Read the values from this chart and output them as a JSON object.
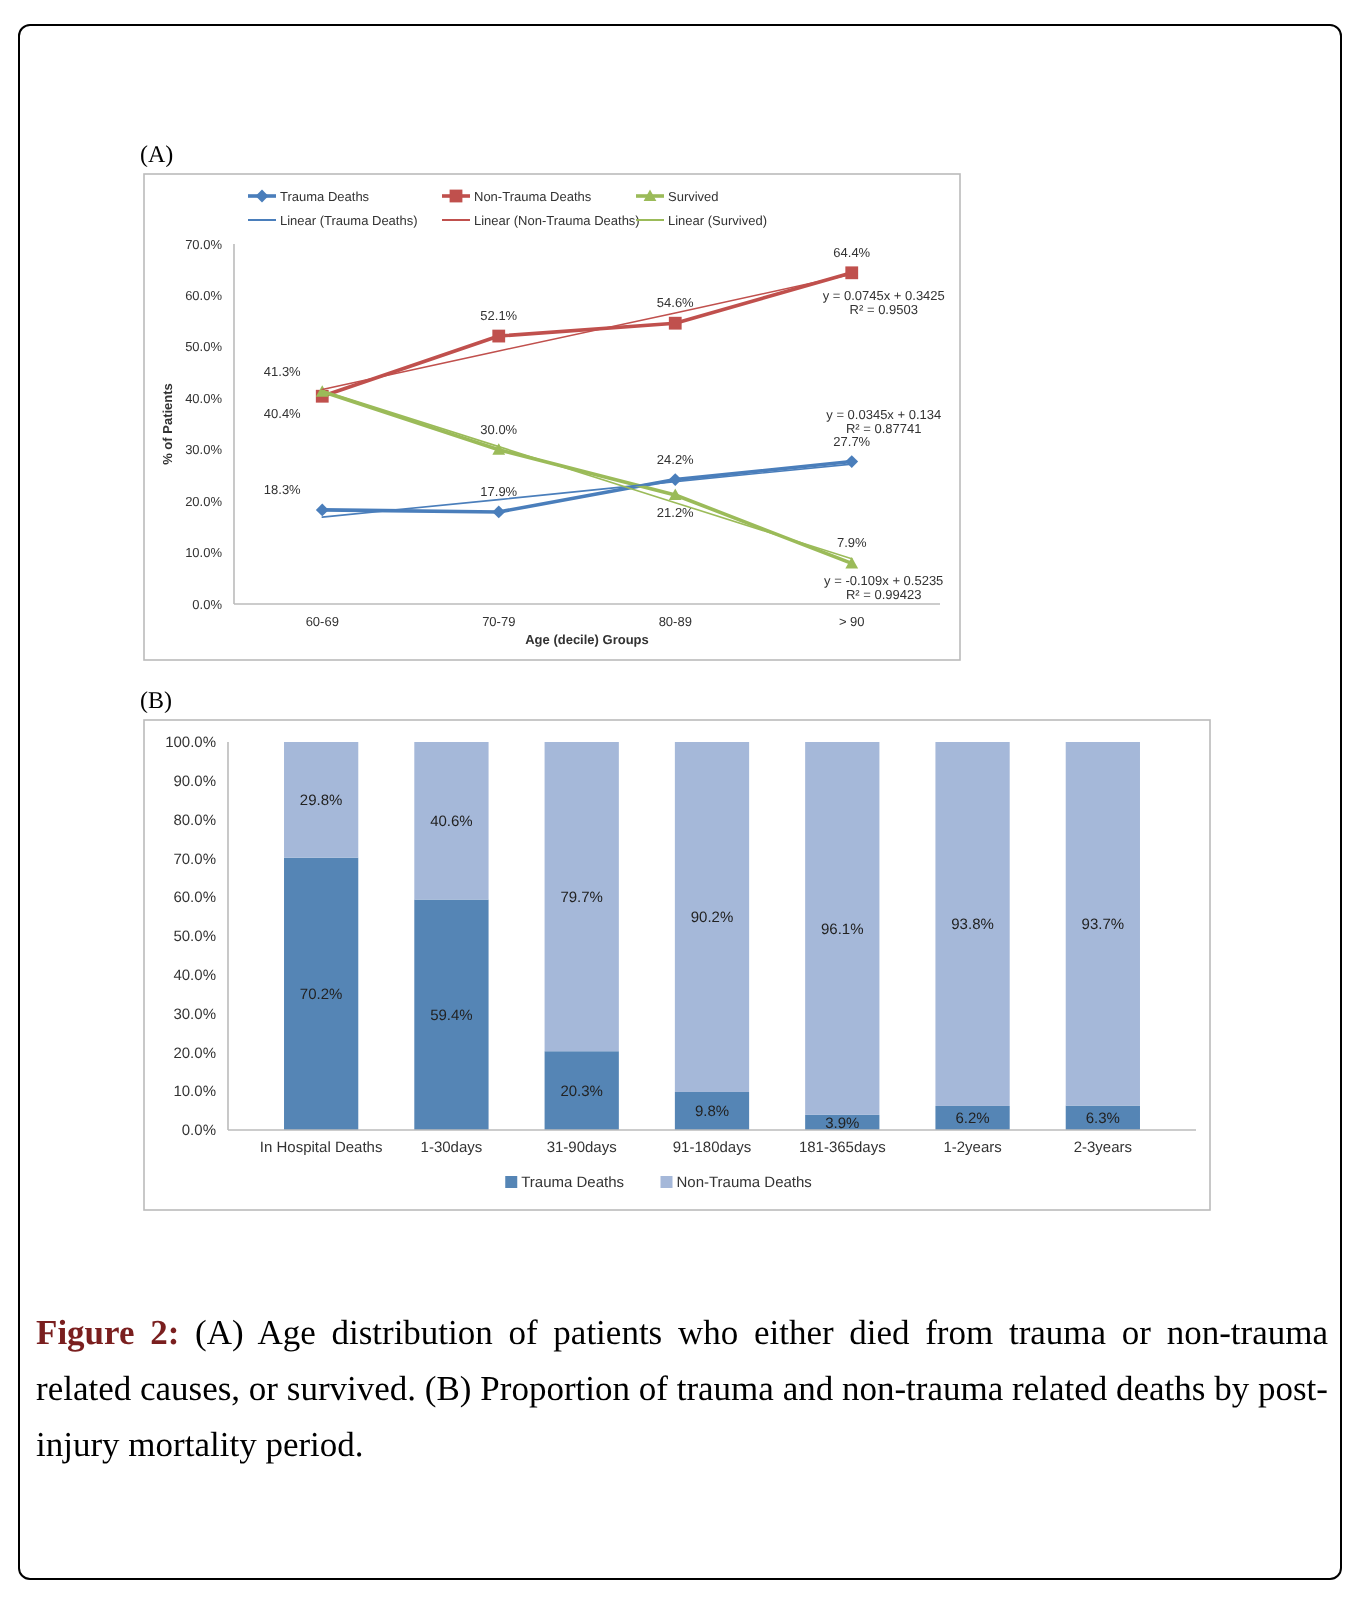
{
  "chart_data": [
    {
      "type": "line",
      "title": "(A)",
      "xlabel": "Age (decile) Groups",
      "ylabel": "% of Patients",
      "categories": [
        "60-69",
        "70-79",
        "80-89",
        "> 90"
      ],
      "ylim": [
        0,
        70
      ],
      "yticks": [
        {
          "value": 0,
          "label": "0.0%"
        },
        {
          "value": 10,
          "label": "10.0%"
        },
        {
          "value": 20,
          "label": "20.0%"
        },
        {
          "value": 30,
          "label": "30.0%"
        },
        {
          "value": 40,
          "label": "40.0%"
        },
        {
          "value": 50,
          "label": "50.0%"
        },
        {
          "value": 60,
          "label": "60.0%"
        },
        {
          "value": 70,
          "label": "70.0%"
        }
      ],
      "legend": "top",
      "series": [
        {
          "name": "Trauma Deaths",
          "color": "#4a7ebb",
          "marker": "diamond",
          "values": [
            18.3,
            17.9,
            24.2,
            27.7
          ],
          "value_labels": [
            "18.3%",
            "17.9%",
            "24.2%",
            "27.7%"
          ]
        },
        {
          "name": "Non-Trauma Deaths",
          "color": "#c0504d",
          "marker": "square",
          "values": [
            40.4,
            52.1,
            54.6,
            64.4
          ],
          "value_labels": [
            "40.4%",
            "52.1%",
            "54.6%",
            "64.4%"
          ]
        },
        {
          "name": "Survived",
          "color": "#9bbb59",
          "marker": "triangle",
          "values": [
            41.3,
            30.0,
            21.2,
            7.9
          ],
          "value_labels": [
            "41.3%",
            "30.0%",
            "21.2%",
            "7.9%"
          ]
        },
        {
          "name": "Linear (Trauma Deaths)",
          "type": "line",
          "color": "#4a7ebb",
          "values": [
            16.9,
            20.3,
            23.8,
            27.2
          ]
        },
        {
          "name": "Linear (Non-Trauma Deaths)",
          "type": "line",
          "color": "#c0504d",
          "values": [
            41.7,
            49.2,
            56.6,
            64.1
          ]
        },
        {
          "name": "Linear (Survived)",
          "type": "line",
          "color": "#9bbb59",
          "values": [
            41.5,
            30.6,
            19.7,
            8.8
          ]
        }
      ],
      "annotations": [
        "y = 0.0345x + 0.134\nR² = 0.87741",
        "y = 0.0745x + 0.3425\nR² = 0.9503",
        "y = -0.109x + 0.5235\nR² = 0.99423"
      ]
    },
    {
      "type": "bar",
      "title": "(B)",
      "stacked": true,
      "legend": "bottom",
      "categories": [
        "In Hospital Deaths",
        "1-30days",
        "31-90days",
        "91-180days",
        "181-365days",
        "1-2years",
        "2-3years"
      ],
      "ylim": [
        0,
        100
      ],
      "yticks": [
        {
          "value": 0,
          "label": "0.0%"
        },
        {
          "value": 10,
          "label": "10.0%"
        },
        {
          "value": 20,
          "label": "20.0%"
        },
        {
          "value": 30,
          "label": "30.0%"
        },
        {
          "value": 40,
          "label": "40.0%"
        },
        {
          "value": 50,
          "label": "50.0%"
        },
        {
          "value": 60,
          "label": "60.0%"
        },
        {
          "value": 70,
          "label": "70.0%"
        },
        {
          "value": 80,
          "label": "80.0%"
        },
        {
          "value": 90,
          "label": "90.0%"
        },
        {
          "value": 100,
          "label": "100.0%"
        }
      ],
      "series": [
        {
          "name": "Trauma Deaths",
          "color": "#5585b5",
          "values": [
            70.2,
            59.4,
            20.3,
            9.8,
            3.9,
            6.2,
            6.3
          ],
          "value_labels": [
            "70.2%",
            "59.4%",
            "20.3%",
            "9.8%",
            "3.9%",
            "6.2%",
            "6.3%"
          ]
        },
        {
          "name": "Non-Trauma Deaths",
          "color": "#a5b8d9",
          "values": [
            29.8,
            40.6,
            79.7,
            90.2,
            96.1,
            93.8,
            93.7
          ],
          "value_labels": [
            "29.8%",
            "40.6%",
            "79.7%",
            "90.2%",
            "96.1%",
            "93.8%",
            "93.7%"
          ]
        }
      ],
      "annotations": [
        "Figure 2: (A) Age distribution of patients who either died from trauma or non-trauma related causes, or survived. (B) Proportion of trauma and non-trauma related deaths by post-injury mortality period."
      ]
    }
  ]
}
